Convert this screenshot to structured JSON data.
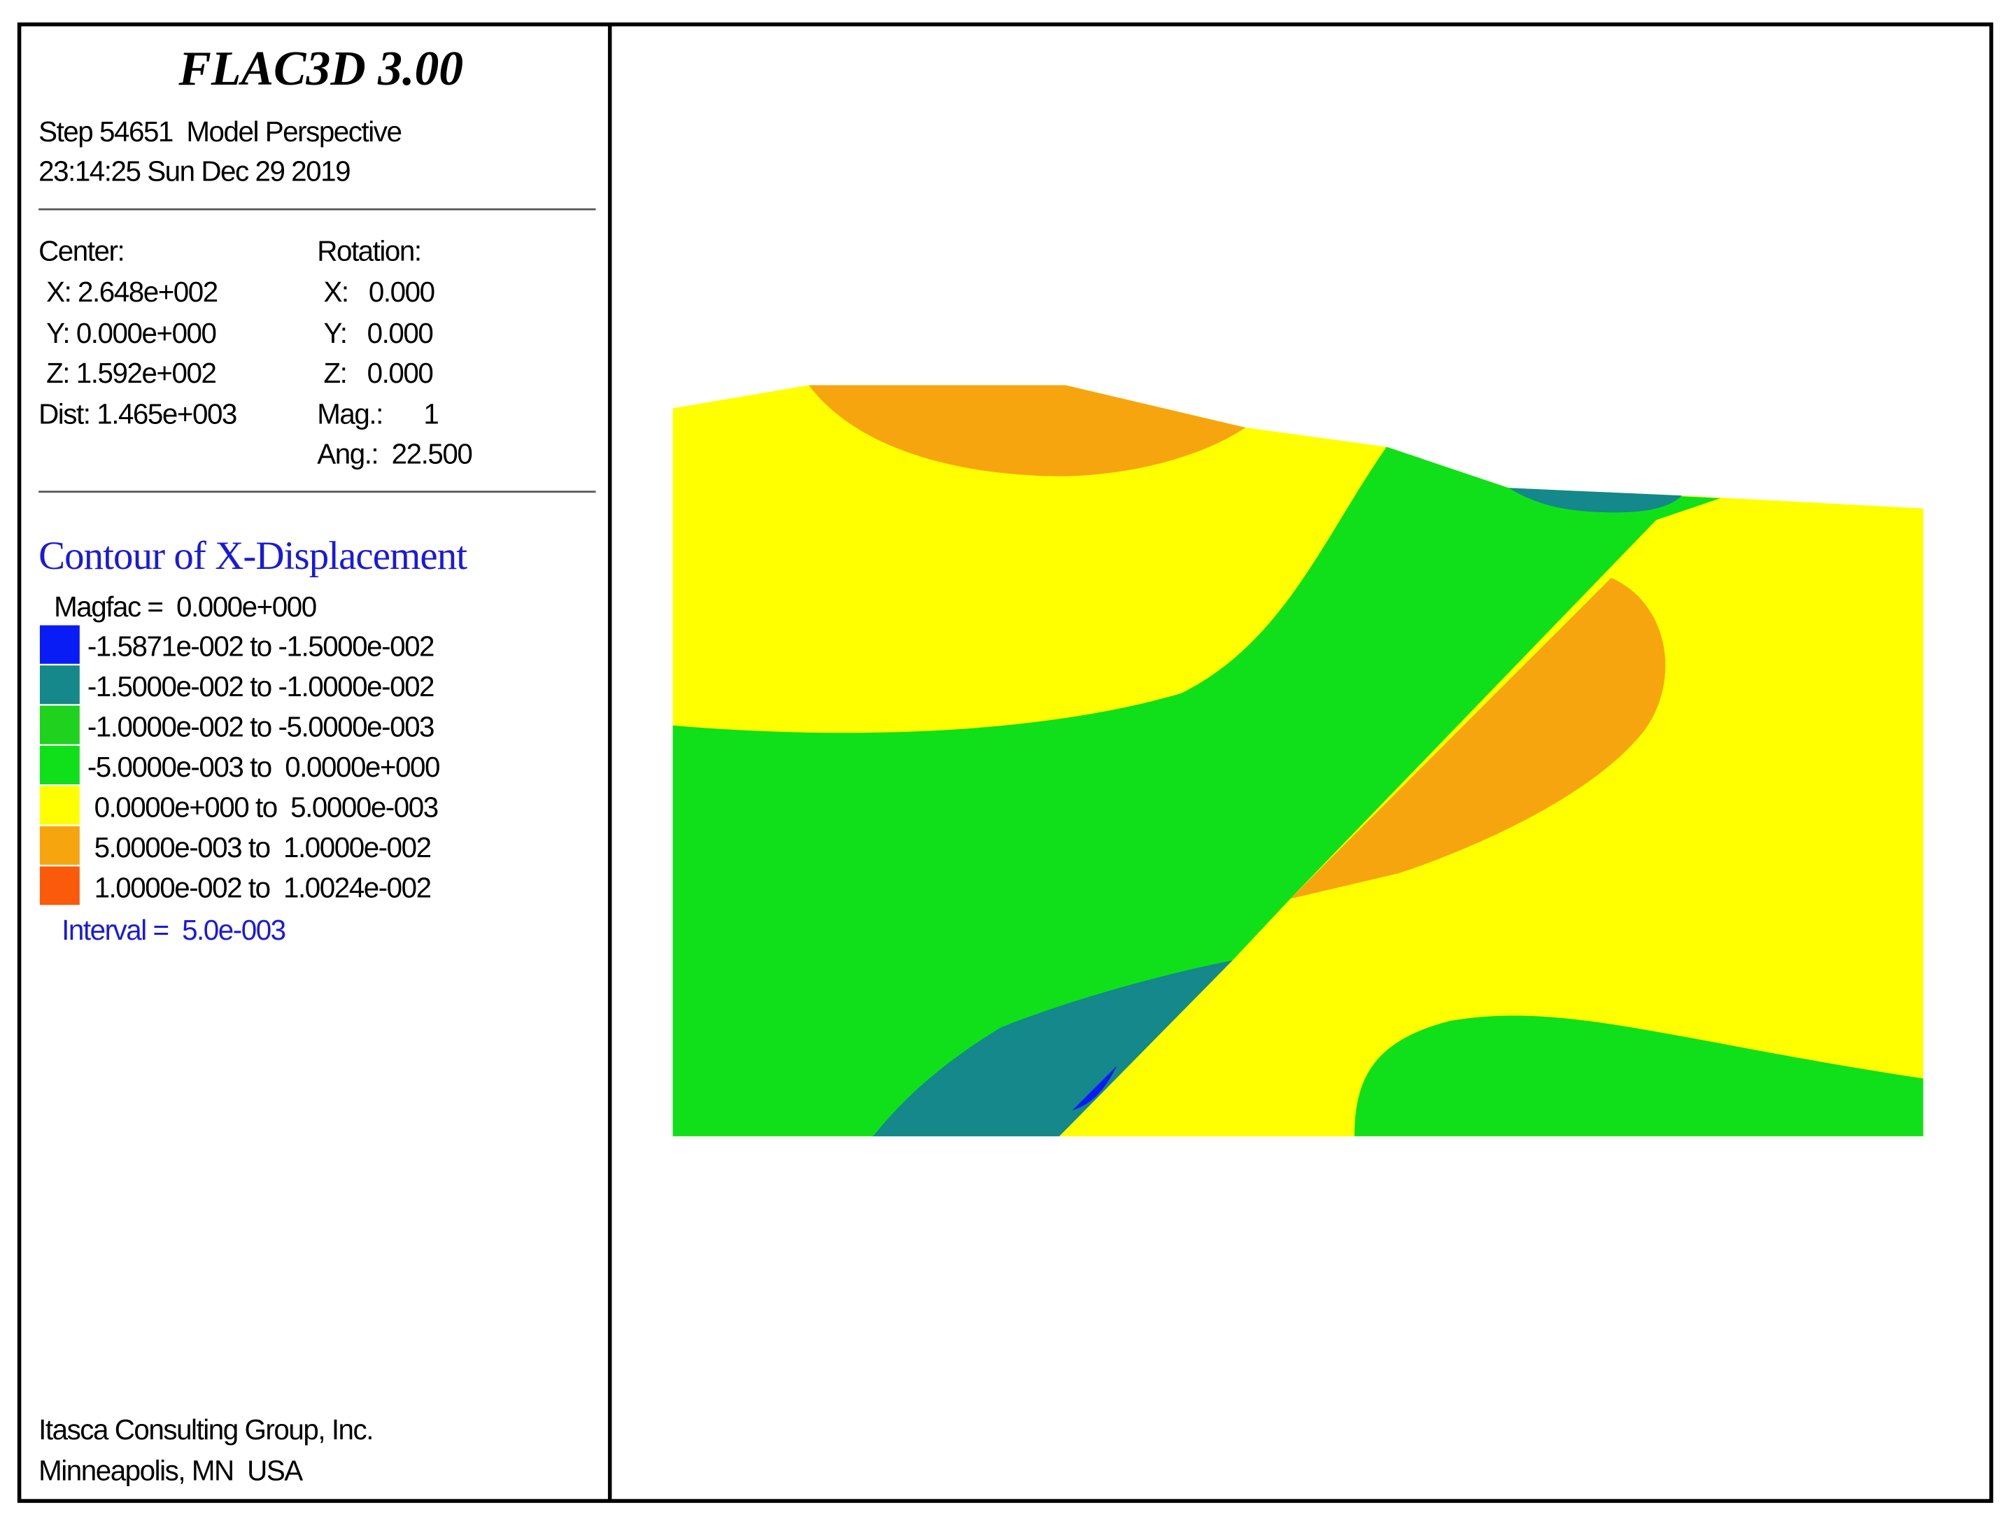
{
  "header": {
    "title": "FLAC3D 3.00",
    "step_line": "Step 54651  Model Perspective",
    "time_line": "23:14:25 Sun Dec 29 2019"
  },
  "view": {
    "center_label": "Center:",
    "center": [
      "X: 2.648e+002",
      "Y: 0.000e+000",
      "Z: 1.592e+002"
    ],
    "dist": "Dist: 1.465e+003",
    "rotation_label": "Rotation:",
    "rotation": [
      "X:   0.000",
      "Y:   0.000",
      "Z:   0.000"
    ],
    "mag": "Mag.:      1",
    "ang": "Ang.:  22.500"
  },
  "legend": {
    "title": "Contour of X-Displacement",
    "magfac": "Magfac =  0.000e+000",
    "items": [
      {
        "label": "-1.5871e-002 to -1.5000e-002",
        "color": "#0a1cf5"
      },
      {
        "label": "-1.5000e-002 to -1.0000e-002",
        "color": "#14888a"
      },
      {
        "label": "-1.0000e-002 to -5.0000e-003",
        "color": "#1ed21e"
      },
      {
        "label": "-5.0000e-003 to  0.0000e+000",
        "color": "#10e01a"
      },
      {
        "label": " 0.0000e+000 to  5.0000e-003",
        "color": "#ffff00"
      },
      {
        "label": " 5.0000e-003 to  1.0000e-002",
        "color": "#f7a50e"
      },
      {
        "label": " 1.0000e-002 to  1.0024e-002",
        "color": "#fa5a0a"
      }
    ],
    "interval": "Interval =  5.0e-003"
  },
  "footer": {
    "company": "Itasca Consulting Group, Inc.",
    "location": "Minneapolis, MN  USA"
  }
}
